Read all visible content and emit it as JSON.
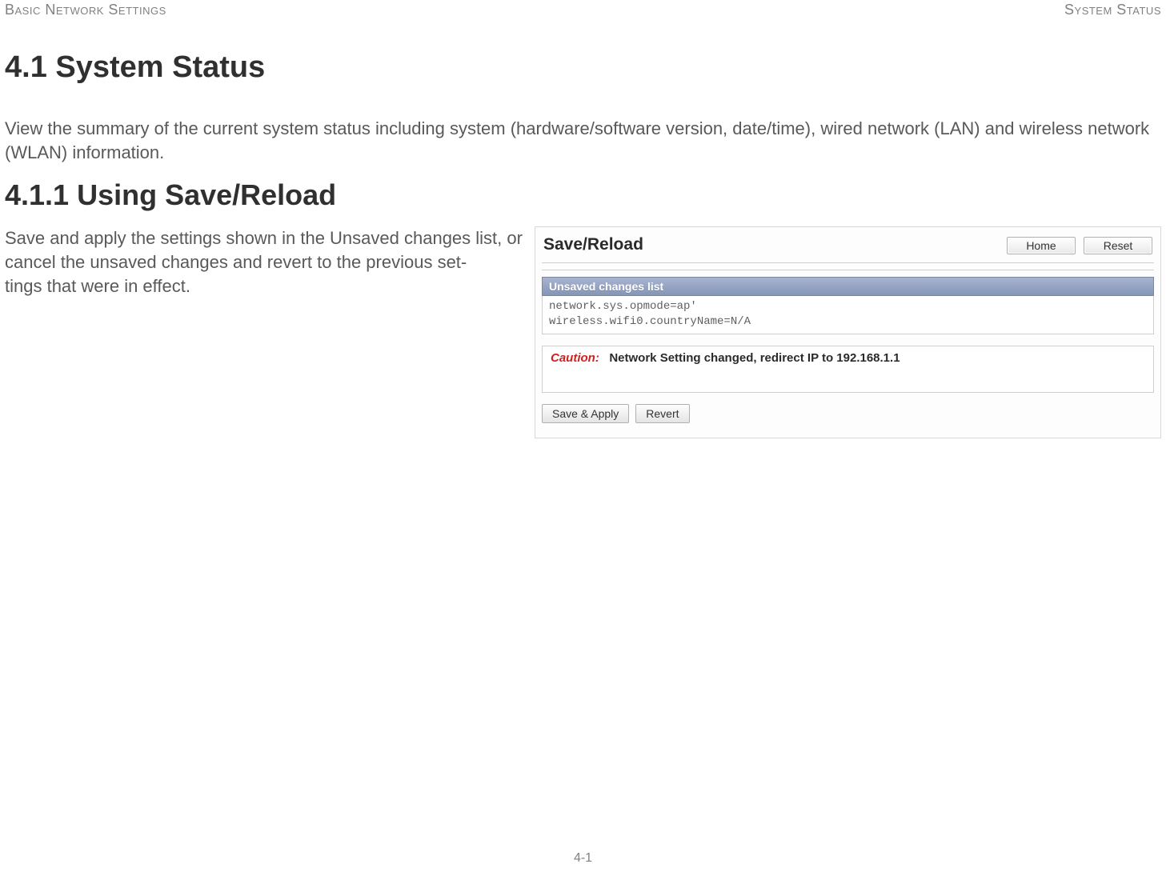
{
  "header": {
    "left": "Basic Network Settings",
    "right": "System Status"
  },
  "h1": "4.1 System Status",
  "intro": "View the summary of the current system status including system (hardware/software version, date/time), wired network (LAN) and wireless network (WLAN) information.",
  "h2": "4.1.1 Using Save/Reload",
  "desc": "Save and apply the settings shown in the Unsaved changes list, or cancel the unsaved changes and revert to the previous set-\ntings that were in effect.",
  "shot": {
    "title": "Save/Reload",
    "home_btn": "Home",
    "reset_btn": "Reset",
    "section_label": "Unsaved changes list",
    "changes": "network.sys.opmode=ap'\nwireless.wifi0.countryName=N/A",
    "caution_label": "Caution:",
    "caution_text": "Network Setting changed, redirect IP to 192.168.1.1",
    "save_apply": "Save & Apply",
    "revert": "Revert"
  },
  "page_number": "4-1",
  "colors": {
    "heading": "#303030",
    "body": "#595959",
    "muted": "#808080",
    "caution": "#d02020",
    "bar_top": "#a8b4cf",
    "bar_bottom": "#8495b8"
  }
}
